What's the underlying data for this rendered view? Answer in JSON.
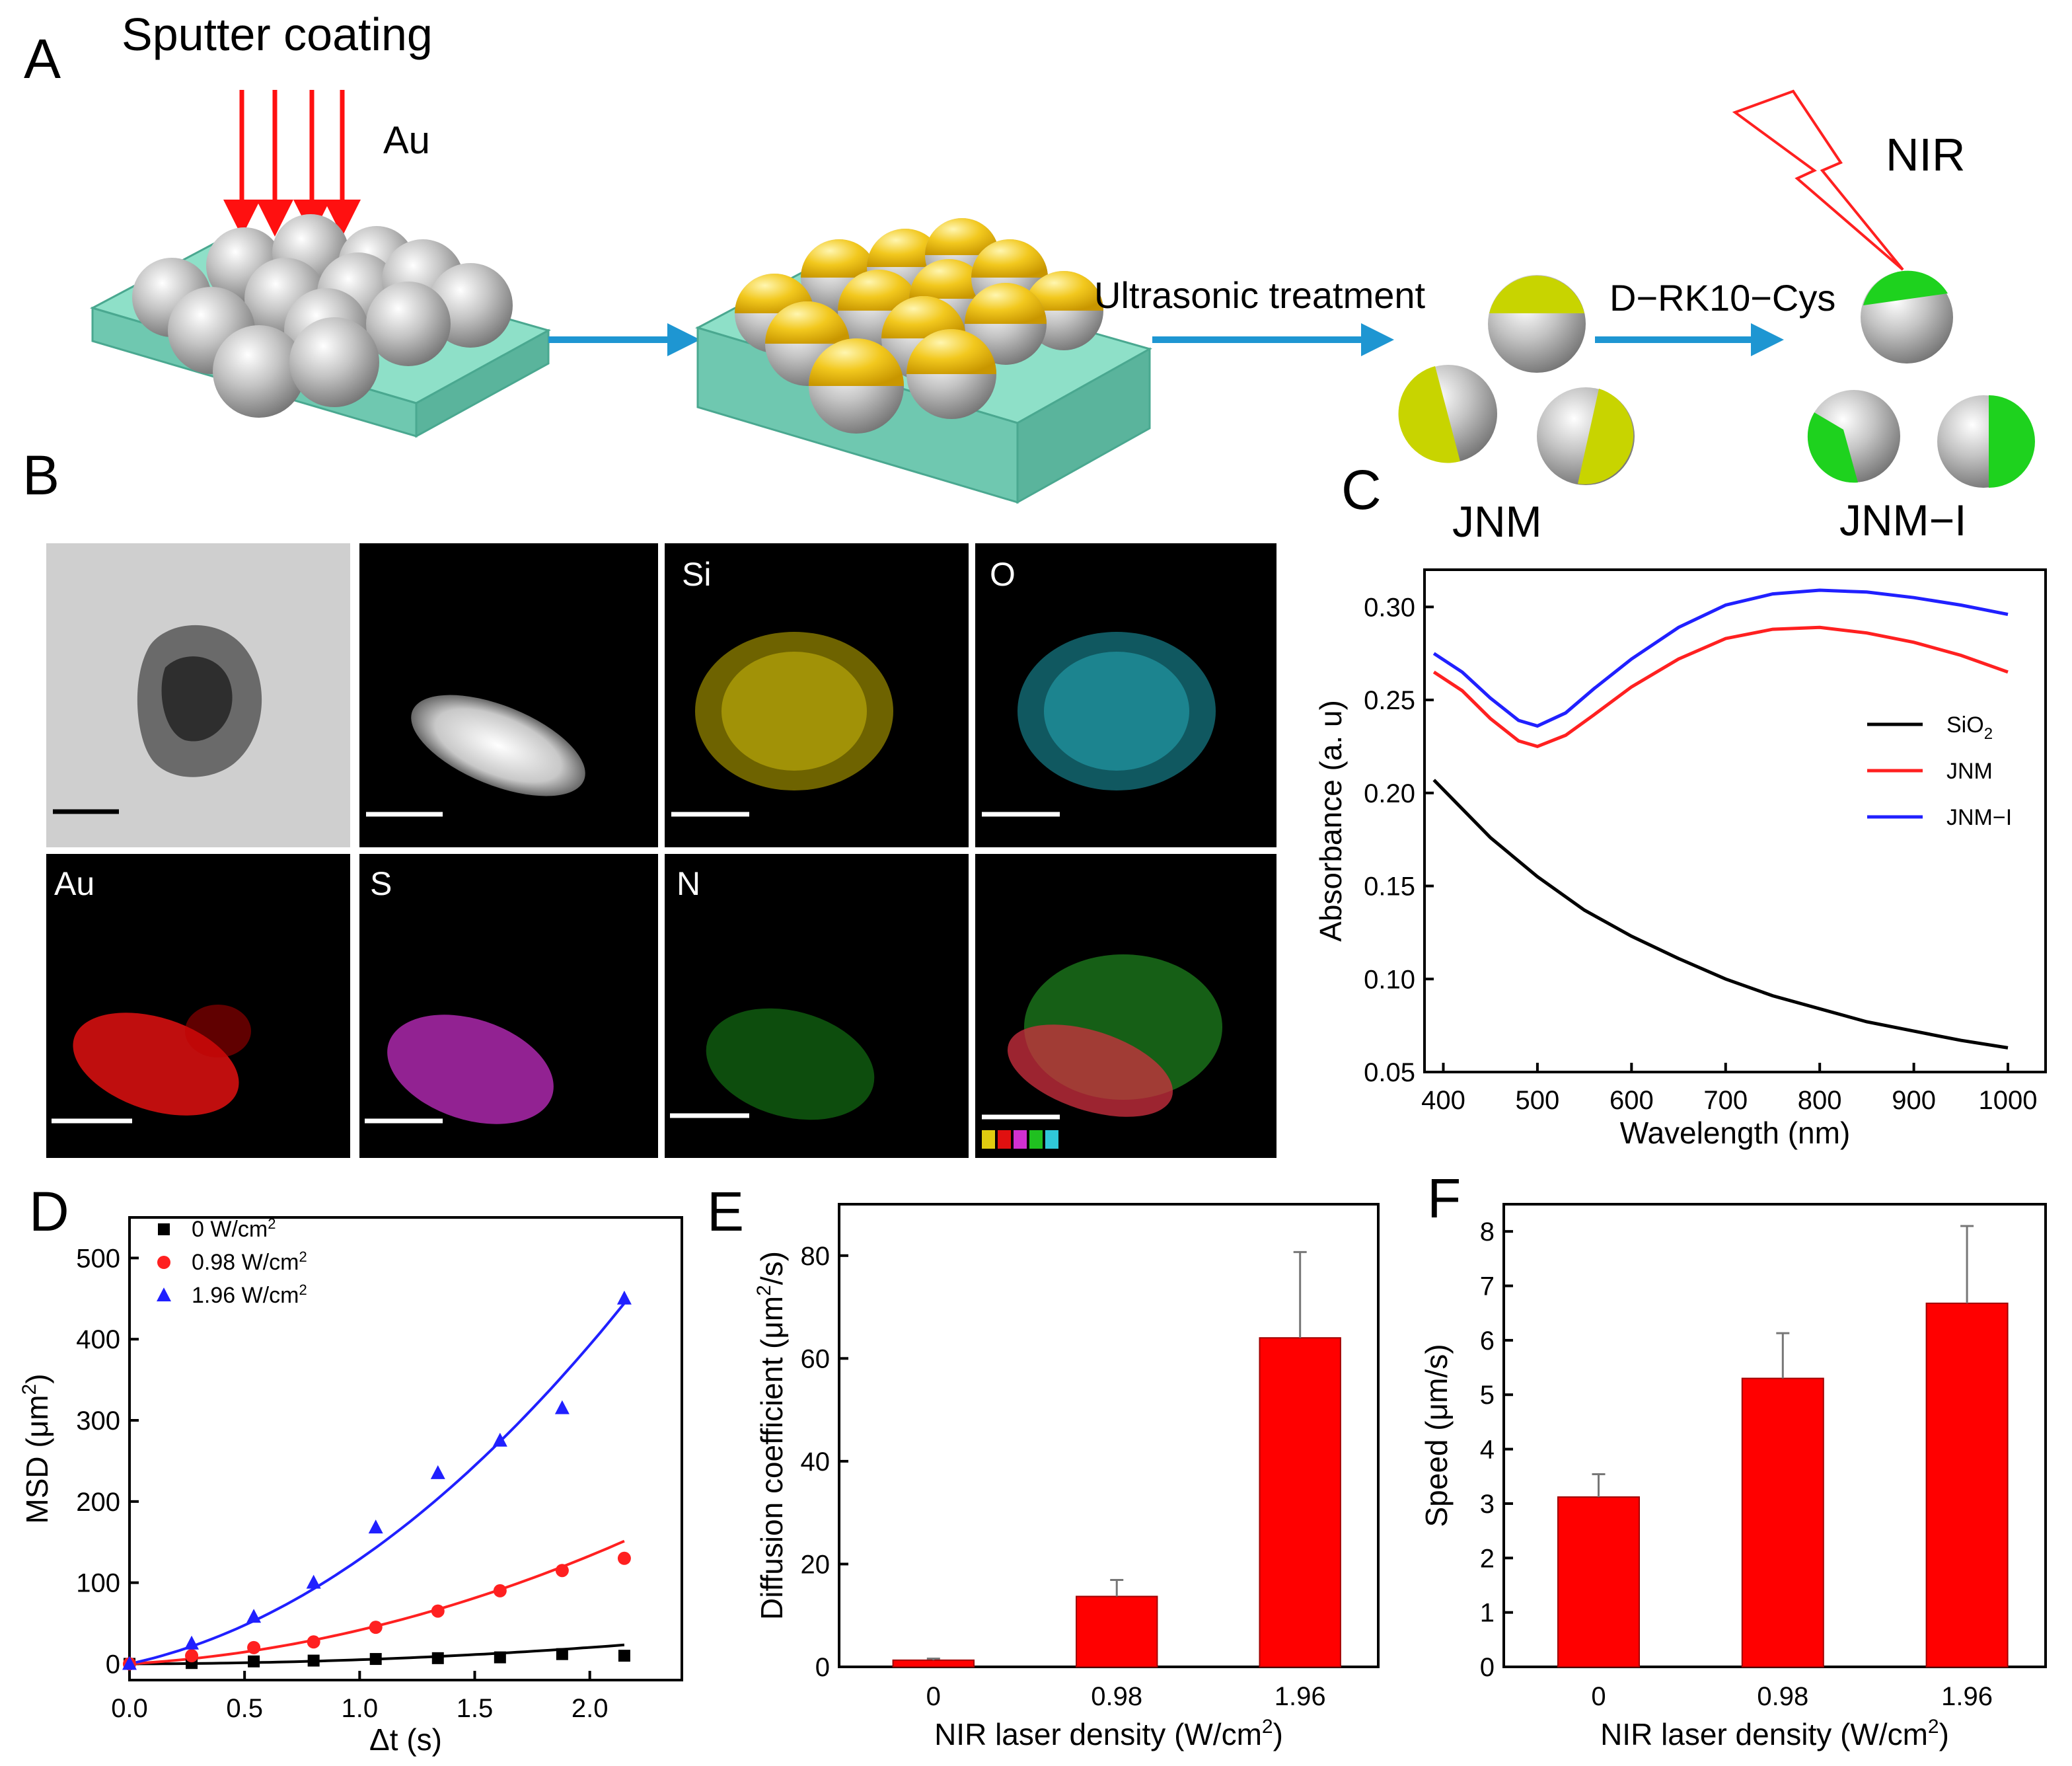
{
  "panels": {
    "a": "A",
    "b": "B",
    "c": "C",
    "d": "D",
    "e": "E",
    "f": "F"
  },
  "schematic": {
    "sputter_label": "Sputter coating",
    "metal_label": "Au",
    "step_ultrasonic": "Ultrasonic treatment",
    "step_peptide": "D−RK10−Cys",
    "nir_label": "NIR",
    "jnm_label": "JNM",
    "jnmi_label": "JNM−I"
  },
  "micrographs": {
    "labels": [
      "Si",
      "O",
      "Au",
      "S",
      "N"
    ]
  },
  "colors": {
    "black": "#000000",
    "red": "#ff2020",
    "blue": "#2020ff",
    "bar": "#ff0000",
    "gold": "#f2c81e",
    "lime": "#c8d400",
    "green": "#1ed21e",
    "arrow": "#1e96d2",
    "substrate": "#8ee0c8"
  },
  "chart_data": [
    {
      "type": "line",
      "title": "",
      "xlabel": "Wavelength (nm)",
      "ylabel": "Absorbance (a. u)",
      "xlim": [
        380,
        1040
      ],
      "ylim": [
        0.05,
        0.32
      ],
      "xticks": [
        "400",
        "500",
        "600",
        "700",
        "800",
        "900",
        "1000"
      ],
      "yticks": [
        "0.05",
        "0.10",
        "0.15",
        "0.20",
        "0.25",
        "0.30"
      ],
      "legend_position": "right",
      "series": [
        {
          "name": "SiO2",
          "legend_main": "SiO",
          "legend_sub": "2",
          "color": "#000000",
          "x": [
            390,
            450,
            500,
            550,
            600,
            650,
            700,
            750,
            800,
            850,
            900,
            950,
            1000
          ],
          "y": [
            0.207,
            0.176,
            0.155,
            0.137,
            0.123,
            0.111,
            0.1,
            0.091,
            0.084,
            0.077,
            0.072,
            0.067,
            0.063
          ]
        },
        {
          "name": "JNM",
          "legend_main": "JNM",
          "legend_sub": "",
          "color": "#ff2020",
          "x": [
            390,
            420,
            450,
            480,
            500,
            530,
            560,
            600,
            650,
            700,
            750,
            800,
            850,
            900,
            950,
            1000
          ],
          "y": [
            0.265,
            0.255,
            0.24,
            0.228,
            0.225,
            0.231,
            0.242,
            0.257,
            0.272,
            0.283,
            0.288,
            0.289,
            0.286,
            0.281,
            0.274,
            0.265
          ]
        },
        {
          "name": "JNM−I",
          "legend_main": "JNM−I",
          "legend_sub": "",
          "color": "#2020ff",
          "x": [
            390,
            420,
            450,
            480,
            500,
            530,
            560,
            600,
            650,
            700,
            750,
            800,
            850,
            900,
            950,
            1000
          ],
          "y": [
            0.275,
            0.265,
            0.251,
            0.239,
            0.236,
            0.243,
            0.256,
            0.272,
            0.289,
            0.301,
            0.307,
            0.309,
            0.308,
            0.305,
            0.301,
            0.296
          ]
        }
      ]
    },
    {
      "type": "scatter",
      "title": "",
      "xlabel": "Δt (s)",
      "ylabel_main": "MSD (μm",
      "ylabel_sup": "2",
      "ylabel_tail": ")",
      "xlim": [
        0,
        2.4
      ],
      "ylim": [
        -20,
        550
      ],
      "xticks": [
        "0.0",
        "0.5",
        "1.0",
        "1.5",
        "2.0"
      ],
      "yticks": [
        "0",
        "100",
        "200",
        "300",
        "400",
        "500"
      ],
      "legend_position": "top-left",
      "series": [
        {
          "name": "0 W/cm2",
          "legend_main": "0 W/cm",
          "legend_sup": "2",
          "color": "#000000",
          "marker": "square",
          "x": [
            0,
            0.27,
            0.54,
            0.8,
            1.07,
            1.34,
            1.61,
            1.88,
            2.15
          ],
          "y": [
            0,
            1,
            3,
            4,
            6,
            7,
            8,
            12,
            10
          ]
        },
        {
          "name": "0.98 W/cm2",
          "legend_main": "0.98 W/cm",
          "legend_sup": "2",
          "color": "#ff2020",
          "marker": "circle",
          "x": [
            0,
            0.27,
            0.54,
            0.8,
            1.07,
            1.34,
            1.61,
            1.88,
            2.15
          ],
          "y": [
            0,
            10,
            20,
            27,
            45,
            65,
            90,
            115,
            130
          ]
        },
        {
          "name": "1.96 W/cm2",
          "legend_main": "1.96 W/cm",
          "legend_sup": "2",
          "color": "#2020ff",
          "marker": "triangle",
          "x": [
            0,
            0.27,
            0.54,
            0.8,
            1.07,
            1.34,
            1.61,
            1.88,
            2.15
          ],
          "y": [
            0,
            25,
            58,
            100,
            168,
            235,
            275,
            315,
            450
          ]
        }
      ],
      "fits": [
        {
          "series": "0 W/cm2",
          "a": 5.0,
          "b": 0.1
        },
        {
          "series": "0.98 W/cm2",
          "a": 25.0,
          "b": 16.6
        },
        {
          "series": "1.96 W/cm2",
          "a": 67.5,
          "b": 61.5
        }
      ]
    },
    {
      "type": "bar",
      "title": "",
      "xlabel_main": "NIR laser density (W/cm",
      "xlabel_sup": "2",
      "xlabel_tail": ")",
      "ylabel_main": "Diffusion coefficient (μm",
      "ylabel_sup": "2",
      "ylabel_tail": "/s)",
      "categories": [
        "0",
        "0.98",
        "1.96"
      ],
      "values": [
        1.3,
        13.7,
        64.0
      ],
      "errors": [
        0.3,
        3.2,
        16.7
      ],
      "ylim": [
        0,
        90
      ],
      "yticks": [
        "0",
        "20",
        "40",
        "60",
        "80"
      ]
    },
    {
      "type": "bar",
      "title": "",
      "xlabel_main": "NIR laser density (W/cm",
      "xlabel_sup": "2",
      "xlabel_tail": ")",
      "ylabel": "Speed (μm/s)",
      "categories": [
        "0",
        "0.98",
        "1.96"
      ],
      "values": [
        3.12,
        5.3,
        6.68
      ],
      "errors": [
        0.42,
        0.83,
        1.42
      ],
      "ylim": [
        0,
        8.5
      ],
      "yticks": [
        "0",
        "1",
        "2",
        "3",
        "4",
        "5",
        "6",
        "7",
        "8"
      ]
    }
  ]
}
